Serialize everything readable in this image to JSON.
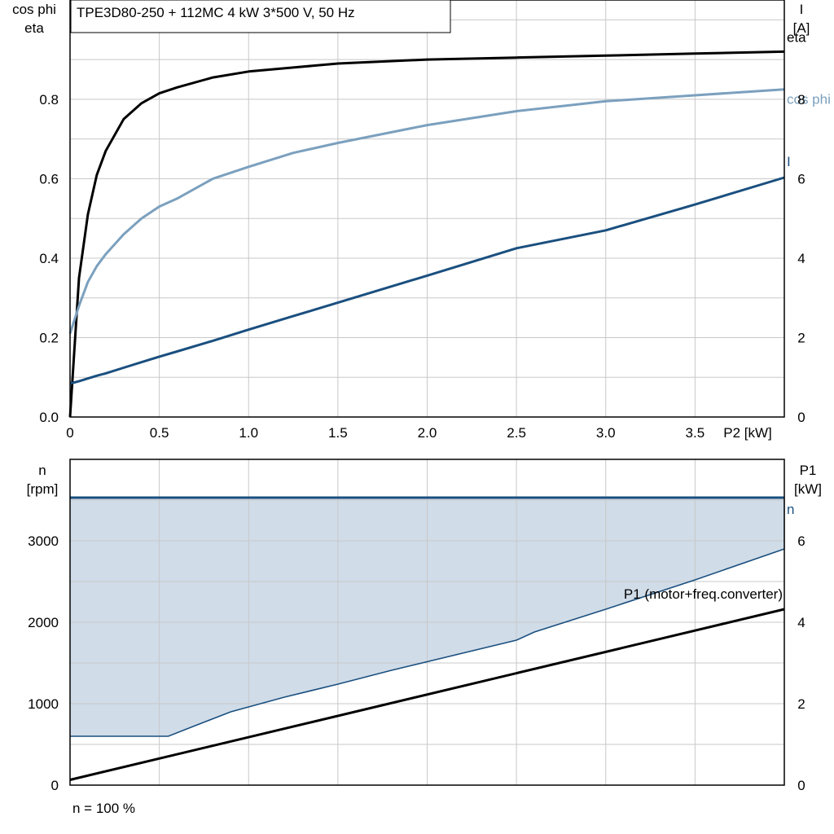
{
  "title": "TPE3D80-250 + 112MC   4 kW   3*500 V, 50 Hz",
  "footnote": "n = 100 %",
  "colors": {
    "eta": "#000000",
    "cos_phi": "#7ba0be",
    "current": "#1a4f7f",
    "speed": "#1a4f7f",
    "speed_area": "#d0dce8",
    "p1": "#000000",
    "grid": "#c8c8c8"
  },
  "chart_data": [
    {
      "type": "line",
      "x": [
        0,
        0.05,
        0.1,
        0.15,
        0.2,
        0.3,
        0.4,
        0.5,
        0.6,
        0.8,
        1.0,
        1.25,
        1.5,
        2.0,
        2.5,
        3.0,
        3.5,
        4.0
      ],
      "xlabel": "P2 [kW]",
      "ylabel_left": [
        "cos phi",
        "eta"
      ],
      "ylabel_right": [
        "I",
        "[A]"
      ],
      "xlim": [
        0,
        4.0
      ],
      "ylim_left": [
        0,
        1.05
      ],
      "ylim_right": [
        0,
        10.5
      ],
      "x_ticks": [
        "0",
        "0.5",
        "1.0",
        "1.5",
        "2.0",
        "2.5",
        "3.0",
        "3.5"
      ],
      "y_ticks_left": [
        "0.0",
        "0.2",
        "0.4",
        "0.6",
        "0.8"
      ],
      "y_ticks_right": [
        "0",
        "2",
        "4",
        "6",
        "8"
      ],
      "grid": true,
      "series": [
        {
          "name": "eta",
          "axis": "left",
          "values": [
            0.0,
            0.35,
            0.51,
            0.61,
            0.67,
            0.75,
            0.79,
            0.815,
            0.83,
            0.855,
            0.87,
            0.88,
            0.89,
            0.9,
            0.905,
            0.91,
            0.915,
            0.92
          ]
        },
        {
          "name": "cos phi",
          "axis": "left",
          "values": [
            0.21,
            0.28,
            0.34,
            0.38,
            0.41,
            0.46,
            0.5,
            0.53,
            0.55,
            0.6,
            0.63,
            0.665,
            0.69,
            0.735,
            0.77,
            0.795,
            0.81,
            0.825
          ]
        },
        {
          "name": "I",
          "axis": "right",
          "values": [
            0.84,
            0.9,
            0.97,
            1.04,
            1.1,
            1.24,
            1.38,
            1.52,
            1.65,
            1.92,
            2.2,
            2.54,
            2.88,
            3.56,
            4.25,
            4.7,
            5.35,
            6.03
          ]
        }
      ]
    },
    {
      "type": "area",
      "x": [
        0,
        0.55,
        0.7,
        0.9,
        1.2,
        1.5,
        1.8,
        2.5,
        2.6,
        3.0,
        3.5,
        4.0
      ],
      "ylabel_left": [
        "n",
        "[rpm]"
      ],
      "ylabel_right": [
        "P1",
        "[kW]"
      ],
      "xlim": [
        0,
        4.0
      ],
      "ylim_left": [
        0,
        4000
      ],
      "ylim_right": [
        0,
        8
      ],
      "y_ticks_left": [
        "0",
        "1000",
        "2000",
        "3000"
      ],
      "y_ticks_right": [
        "0",
        "2",
        "4",
        "6"
      ],
      "grid": true,
      "series": [
        {
          "name": "n",
          "axis": "left",
          "x": [
            0,
            4.0
          ],
          "values": [
            3530,
            3530
          ]
        },
        {
          "axis": "left",
          "values": [
            600,
            600,
            730,
            900,
            1080,
            1240,
            1410,
            1780,
            1880,
            2160,
            2520,
            2900
          ]
        },
        {
          "name": "P1 (motor+freq.converter)",
          "axis": "right",
          "x": [
            0,
            4.0
          ],
          "values": [
            0.13,
            4.32
          ]
        }
      ]
    }
  ]
}
